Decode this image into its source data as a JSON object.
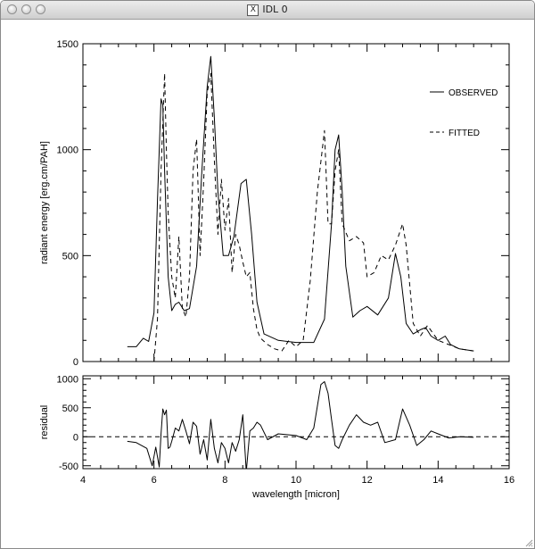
{
  "window": {
    "title": "IDL 0",
    "icon": "x-window-icon"
  },
  "chart_data": [
    {
      "type": "line",
      "ylabel": "radiant energy  [erg.cm/PAH]",
      "xlim": [
        4,
        16
      ],
      "ylim": [
        0,
        1500
      ],
      "yticks": [
        0,
        500,
        1000,
        1500
      ],
      "yticklabels": [
        "0",
        "500",
        "1000",
        "1500"
      ],
      "legend_position": "top-right",
      "series": [
        {
          "name": "OBSERVED",
          "style": "solid",
          "x": [
            5.25,
            5.5,
            5.7,
            5.85,
            6.0,
            6.1,
            6.2,
            6.25,
            6.3,
            6.4,
            6.5,
            6.6,
            6.7,
            6.85,
            7.0,
            7.2,
            7.35,
            7.5,
            7.6,
            7.7,
            7.8,
            7.95,
            8.1,
            8.25,
            8.45,
            8.6,
            8.75,
            8.9,
            9.1,
            9.5,
            10.0,
            10.5,
            10.8,
            11.0,
            11.1,
            11.2,
            11.3,
            11.4,
            11.6,
            11.8,
            12.0,
            12.3,
            12.6,
            12.8,
            12.95,
            13.1,
            13.3,
            13.5,
            13.65,
            13.8,
            14.0,
            14.2,
            14.35,
            14.6,
            15.0
          ],
          "y": [
            70,
            70,
            110,
            95,
            230,
            760,
            1240,
            1210,
            900,
            400,
            240,
            270,
            280,
            240,
            250,
            450,
            900,
            1300,
            1440,
            1150,
            800,
            500,
            500,
            590,
            840,
            860,
            600,
            280,
            130,
            100,
            90,
            90,
            200,
            650,
            1000,
            1070,
            800,
            450,
            210,
            240,
            260,
            220,
            300,
            510,
            400,
            180,
            130,
            150,
            160,
            120,
            100,
            120,
            80,
            60,
            50
          ]
        },
        {
          "name": "FITTED",
          "style": "dashed",
          "x": [
            6.0,
            6.1,
            6.2,
            6.3,
            6.35,
            6.4,
            6.5,
            6.6,
            6.7,
            6.8,
            6.9,
            7.0,
            7.1,
            7.2,
            7.3,
            7.4,
            7.5,
            7.6,
            7.7,
            7.8,
            7.9,
            8.0,
            8.1,
            8.2,
            8.3,
            8.4,
            8.5,
            8.6,
            8.7,
            8.8,
            8.9,
            9.0,
            9.2,
            9.4,
            9.6,
            9.8,
            10.0,
            10.2,
            10.4,
            10.6,
            10.8,
            10.9,
            11.0,
            11.1,
            11.2,
            11.3,
            11.5,
            11.7,
            11.9,
            12.0,
            12.2,
            12.4,
            12.6,
            12.8,
            13.0,
            13.1,
            13.3,
            13.5,
            13.7,
            14.0,
            14.3,
            14.6,
            15.0
          ],
          "y": [
            0,
            200,
            900,
            1360,
            1000,
            700,
            400,
            300,
            590,
            250,
            210,
            400,
            900,
            1050,
            500,
            850,
            1270,
            1360,
            950,
            600,
            860,
            620,
            770,
            420,
            600,
            550,
            470,
            400,
            420,
            250,
            150,
            110,
            80,
            60,
            50,
            100,
            70,
            100,
            380,
            800,
            1090,
            650,
            650,
            900,
            1000,
            650,
            570,
            590,
            560,
            400,
            420,
            500,
            480,
            550,
            650,
            550,
            180,
            120,
            170,
            100,
            80,
            60,
            50
          ]
        }
      ]
    },
    {
      "type": "line",
      "xlabel": "wavelength  [micron]",
      "ylabel": "residual",
      "xlim": [
        4,
        16
      ],
      "ylim": [
        -550,
        1050
      ],
      "xticks": [
        4,
        6,
        8,
        10,
        12,
        14,
        16
      ],
      "xticklabels": [
        "4",
        "6",
        "8",
        "10",
        "12",
        "14",
        "16"
      ],
      "yticks": [
        -500,
        0,
        500,
        1000
      ],
      "yticklabels": [
        "-500",
        "0",
        "500",
        "1000"
      ],
      "zero_line": true,
      "series": [
        {
          "style": "solid",
          "x": [
            5.25,
            5.5,
            5.8,
            5.95,
            6.05,
            6.15,
            6.2,
            6.25,
            6.3,
            6.35,
            6.4,
            6.45,
            6.5,
            6.6,
            6.7,
            6.8,
            6.9,
            7.0,
            7.1,
            7.2,
            7.3,
            7.4,
            7.5,
            7.6,
            7.7,
            7.8,
            7.9,
            8.0,
            8.1,
            8.2,
            8.3,
            8.4,
            8.5,
            8.6,
            8.7,
            8.8,
            8.9,
            9.0,
            9.2,
            9.5,
            10.0,
            10.3,
            10.5,
            10.7,
            10.8,
            10.9,
            11.0,
            11.1,
            11.2,
            11.3,
            11.5,
            11.7,
            11.9,
            12.1,
            12.3,
            12.5,
            12.8,
            13.0,
            13.2,
            13.4,
            13.6,
            13.8,
            14.0,
            14.3,
            14.6,
            15.0
          ],
          "y": [
            -80,
            -100,
            -200,
            -500,
            -180,
            -520,
            50,
            480,
            380,
            460,
            -200,
            -180,
            -80,
            150,
            100,
            300,
            100,
            -120,
            250,
            180,
            -300,
            -50,
            -400,
            300,
            -200,
            -450,
            -100,
            -200,
            -450,
            -100,
            -250,
            -50,
            380,
            -600,
            100,
            150,
            250,
            200,
            -50,
            50,
            20,
            -50,
            150,
            900,
            950,
            750,
            300,
            -150,
            -200,
            -50,
            200,
            380,
            250,
            200,
            250,
            -100,
            -50,
            480,
            200,
            -150,
            -50,
            100,
            50,
            -20,
            0,
            -10
          ]
        }
      ]
    }
  ]
}
